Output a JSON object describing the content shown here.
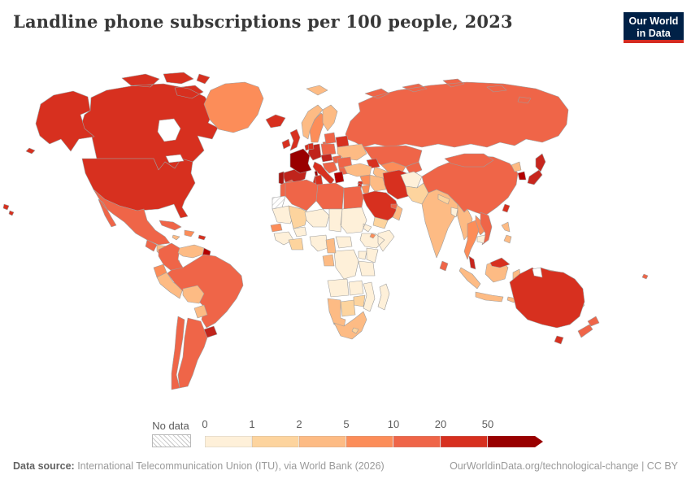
{
  "title": "Landline phone subscriptions per 100 people, 2023",
  "logo": {
    "line1": "Our World",
    "line2": "in Data",
    "bg_color": "#002147",
    "strip_color": "#d42b21"
  },
  "legend": {
    "no_data_label": "No data",
    "ticks": [
      "0",
      "1",
      "2",
      "5",
      "10",
      "20",
      "50"
    ],
    "bin_colors": [
      "#fef0d9",
      "#fdd49e",
      "#fdbb84",
      "#fc8d59",
      "#ef6548",
      "#d7301f",
      "#990000"
    ],
    "bin_ranges": [
      "0-1",
      "1-2",
      "2-5",
      "5-10",
      "10-20",
      "20-50",
      "50+"
    ]
  },
  "footer": {
    "source_label": "Data source:",
    "source_text": " International Telecommunication Union (ITU), via World Bank (2026)",
    "right_text": "OurWorldinData.org/technological-change | CC BY"
  },
  "map": {
    "border_color": "#9e9e9e",
    "fills": {
      "water": "#ffffff",
      "no_data": "url(#hatch)",
      "usa": "#d7301f",
      "canada": "#d7301f",
      "hawaii": "#d7301f",
      "greenland": "#fc8d59",
      "mexico": "#ef6548",
      "guatemala": "#ef6548",
      "honduras_nicaragua": "#fdbb84",
      "costa_rica_panama": "#fc8d59",
      "cuba": "#ef6548",
      "hispaniola": "#fc8d59",
      "puerto_rico": "#d7301f",
      "jamaica": "#fdbb84",
      "colombia": "#ef6548",
      "venezuela": "#fdbb84",
      "guyana": "#b30000",
      "ecuador": "#fc8d59",
      "peru": "#fdbb84",
      "bolivia": "#fdbb84",
      "paraguay": "#fdbb84",
      "brazil": "#ef6548",
      "uruguay": "#c0241c",
      "argentina": "#ef6548",
      "chile": "#ef6548",
      "iceland": "#d7301f",
      "ireland": "#d7301f",
      "uk": "#d7301f",
      "norway": "#fdbb84",
      "sweden": "#fc8d59",
      "finland": "#fdbb84",
      "denmark": "#d7301f",
      "baltics": "#ef6548",
      "belarus": "#d7301f",
      "poland": "#ef6548",
      "germany": "#c0241c",
      "benelux": "#d7301f",
      "france": "#990000",
      "spain": "#c0241c",
      "portugal": "#a81410",
      "italy": "#d7301f",
      "austria_czech": "#c0241c",
      "hungary_slovakia": "#ef6548",
      "balkans": "#ef6548",
      "greece": "#b30000",
      "romania": "#ef6548",
      "bulgaria": "#ef6548",
      "ukraine": "#fdbb84",
      "svalbard": "#fdbb84",
      "russia": "#ef6548",
      "kazakhstan": "#ef6548",
      "uzbekistan": "#fc8d59",
      "turkmenistan": "#fdbb84",
      "kyrgyz_tajik": "#ef6548",
      "caucasus": "#d7301f",
      "turkey": "#fdbb84",
      "cyprus": "#d7301f",
      "syria": "#fc8d59",
      "lebanon_israel": "#d7301f",
      "jordan": "#fc8d59",
      "iraq": "#fdbb84",
      "iran": "#d7301f",
      "saudi_arabia": "#d7301f",
      "yemen": "#fdd49e",
      "oman": "#fdbb84",
      "uae": "#ef6548",
      "afghanistan": "#fef0d9",
      "pakistan": "#fdd49e",
      "india": "#fdbb84",
      "nepal": "#fdd49e",
      "bangladesh": "#fef0d9",
      "sri_lanka": "#ef6548",
      "china": "#ef6548",
      "mongolia": "#ef6548",
      "north_korea": "#fdbb84",
      "south_korea": "#b30000",
      "japan": "#c7261d",
      "taiwan": "#d7301f",
      "myanmar": "#fdbb84",
      "thailand": "#fc8d59",
      "laos": "#fc8d59",
      "vietnam": "#ef6548",
      "cambodia": "#fef0d9",
      "malaysia_west": "#c7261d",
      "malaysia_east": "#d7301f",
      "indonesia": "#fdbb84",
      "philippines": "#fdbb84",
      "png": "#fdbb84",
      "new_caledonia": "#fdbb84",
      "fiji": "#ef6548",
      "australia": "#d7301f",
      "new_zealand": "#ef6548",
      "morocco": "#ef6548",
      "algeria": "#ef6548",
      "tunisia": "#d7301f",
      "libya": "#ef6548",
      "egypt": "#ef6548",
      "mauritania": "#fef0d9",
      "mali": "#fdd49e",
      "senegal": "#fc8d59",
      "ghana_ci": "#fdd49e",
      "cameroon": "#fdbb84",
      "gabon_congo": "#fdbb84",
      "djibouti": "#fc8d59",
      "zimbabwe": "#fdd49e",
      "botswana": "#fdd49e",
      "namibia": "#fdbb84",
      "south_africa": "#fdbb84",
      "lesotho": "#fdd49e",
      "africa_cream": "#fef0d9"
    }
  }
}
